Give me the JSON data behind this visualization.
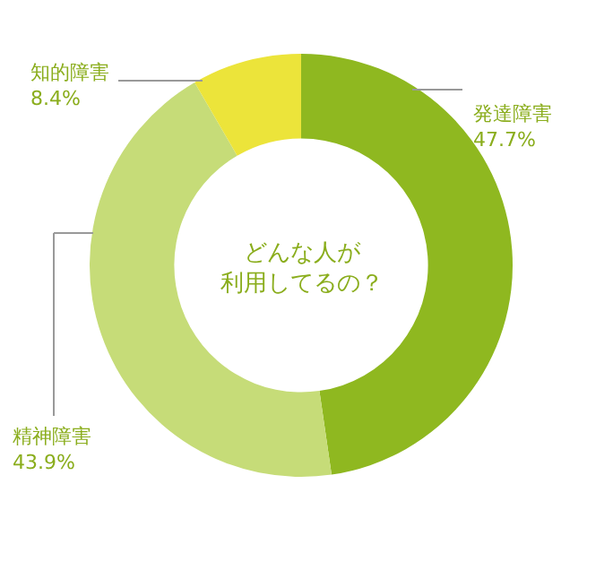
{
  "chart_data": {
    "type": "donut",
    "title": "どんな人が利用してるの？",
    "categories": [
      "発達障害",
      "精神障害",
      "知的障害"
    ],
    "values": [
      47.7,
      43.9,
      8.4
    ],
    "value_labels": [
      "47.7%",
      "43.9%",
      "8.4%"
    ],
    "colors": [
      "#8fb820",
      "#c6dc78",
      "#ece43a"
    ],
    "legend": false
  }
}
